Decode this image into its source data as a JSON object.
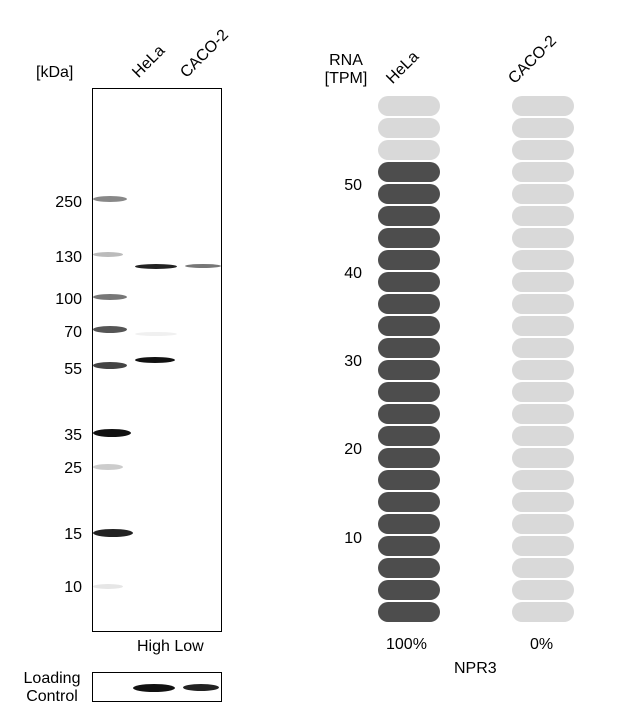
{
  "western_blot": {
    "kda_label": "[kDa]",
    "lanes": [
      "HeLa",
      "CACO-2"
    ],
    "markers": [
      "250",
      "130",
      "100",
      "70",
      "55",
      "35",
      "25",
      "15",
      "10"
    ],
    "level_labels": "High Low",
    "loading_control_line1": "Loading",
    "loading_control_line2": "Control"
  },
  "rna_chart": {
    "ylabel_line1": "RNA",
    "ylabel_line2": "[TPM]",
    "cell_lines": [
      "HeLa",
      "CACO-2"
    ],
    "y_ticks": [
      "50",
      "40",
      "30",
      "20",
      "10"
    ],
    "percent_labels": [
      "100%",
      "0%"
    ],
    "gene": "NPR3",
    "colors": {
      "filled": "#4d4d4d",
      "empty": "#d9d9d9"
    }
  },
  "chart_data": {
    "type": "bar",
    "categories": [
      "HeLa",
      "CACO-2"
    ],
    "values": [
      100,
      0
    ],
    "ylabel": "RNA [TPM]",
    "y_ticks": [
      10,
      20,
      30,
      40,
      50
    ],
    "total_segments": 24,
    "filled_segments": [
      21,
      0
    ],
    "percent_labels": [
      "100%",
      "0%"
    ],
    "gene": "NPR3"
  }
}
